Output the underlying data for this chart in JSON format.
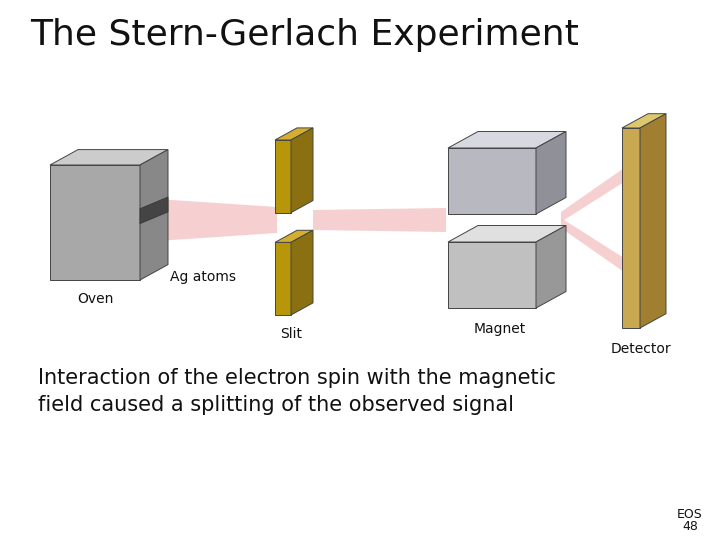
{
  "title": "The Stern-Gerlach Experiment",
  "subtitle_line1": "Interaction of the electron spin with the magnetic",
  "subtitle_line2": "field caused a splitting of the observed signal",
  "footer_line1": "EOS",
  "footer_line2": "48",
  "bg_color": "#ffffff",
  "title_fontsize": 26,
  "subtitle_fontsize": 15,
  "footer_fontsize": 9,
  "label_fontsize": 10,
  "labels": {
    "oven": "Oven",
    "ag_atoms": "Ag atoms",
    "slit": "Slit",
    "magnet": "Magnet",
    "detector": "Detector"
  },
  "beam_color": "#f5c8c8",
  "oven_front": "#a8a8a8",
  "oven_top": "#cccccc",
  "oven_right": "#888888",
  "oven_hole": "#444444",
  "slit_front": "#b8960a",
  "slit_top": "#d4ae30",
  "slit_right": "#8a7010",
  "magnet_front": "#c0c0c0",
  "magnet_top": "#e0e0e0",
  "magnet_right": "#909090",
  "det_front": "#c8a850",
  "det_top": "#ddc870",
  "det_right": "#a08030"
}
